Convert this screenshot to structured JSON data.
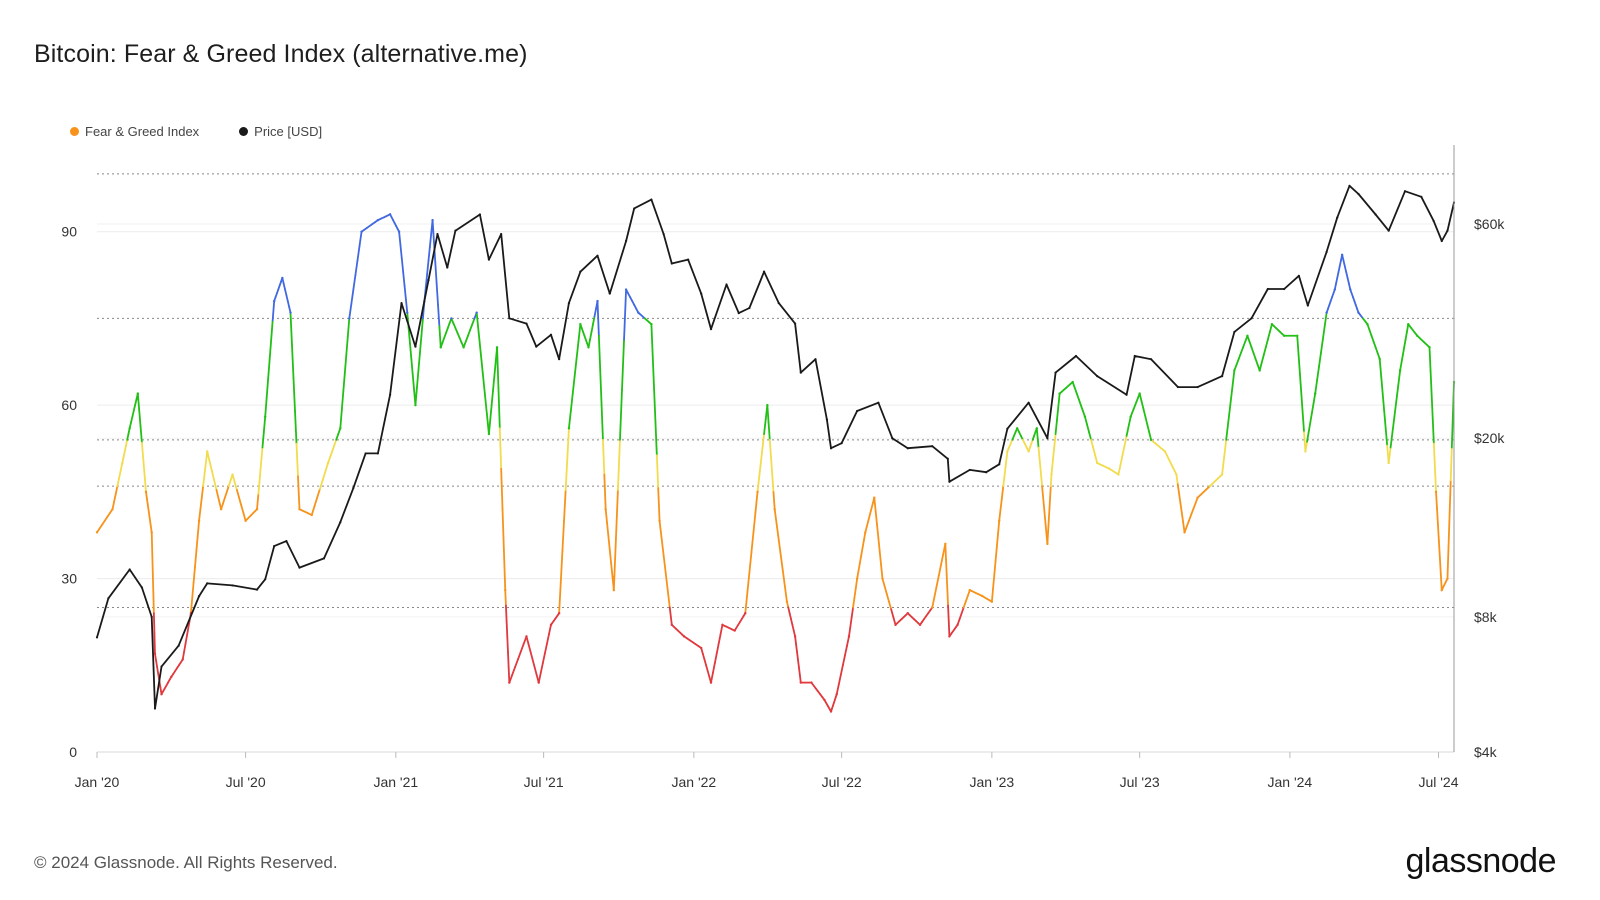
{
  "title": "Bitcoin: Fear & Greed Index (alternative.me)",
  "footer": "© 2024 Glassnode. All Rights Reserved.",
  "brand": "glassnode",
  "legend": [
    {
      "name": "Fear & Greed Index",
      "color": "#f7931a"
    },
    {
      "name": "Price [USD]",
      "color": "#1a1a1a"
    }
  ],
  "colors": {
    "extreme_greed": "#4169e1",
    "greed": "#22c015",
    "neutral": "#f2dc4e",
    "fear": "#f7931a",
    "extreme_fear": "#e0393e",
    "price": "#1a1a1a"
  },
  "chart_data": {
    "type": "line",
    "title": "Bitcoin: Fear & Greed Index (alternative.me)",
    "xlabel": "",
    "ylabel_left": "",
    "ylabel_right": "",
    "x_ticks": [
      "Jan '20",
      "Jul '20",
      "Jan '21",
      "Jul '21",
      "Jan '22",
      "Jul '22",
      "Jan '23",
      "Jul '23",
      "Jan '24",
      "Jul '24"
    ],
    "y_left_ticks": [
      0,
      30,
      60,
      90
    ],
    "y_left_range": [
      0,
      105
    ],
    "y_right_ticks": [
      "$4k",
      "$8k",
      "$20k",
      "$60k"
    ],
    "y_right_tick_values": [
      4000,
      8000,
      20000,
      60000
    ],
    "y_right_scale": "log",
    "y_right_range": [
      4000,
      90000
    ],
    "x_range": [
      "2020-01-01",
      "2024-07-20"
    ],
    "grid": "horizontal",
    "legend_position": "top-left",
    "fg_zone_thresholds": [
      25,
      46,
      54,
      75
    ],
    "series": [
      {
        "name": "Fear & Greed Index",
        "axis": "left",
        "points": [
          [
            "2020-01-01",
            38
          ],
          [
            "2020-01-20",
            42
          ],
          [
            "2020-02-01",
            50
          ],
          [
            "2020-02-10",
            56
          ],
          [
            "2020-02-20",
            62
          ],
          [
            "2020-03-01",
            45
          ],
          [
            "2020-03-08",
            38
          ],
          [
            "2020-03-12",
            17
          ],
          [
            "2020-03-20",
            10
          ],
          [
            "2020-04-01",
            13
          ],
          [
            "2020-04-15",
            16
          ],
          [
            "2020-04-25",
            24
          ],
          [
            "2020-05-05",
            40
          ],
          [
            "2020-05-15",
            52
          ],
          [
            "2020-06-01",
            42
          ],
          [
            "2020-06-15",
            48
          ],
          [
            "2020-07-01",
            40
          ],
          [
            "2020-07-15",
            42
          ],
          [
            "2020-07-25",
            58
          ],
          [
            "2020-08-05",
            78
          ],
          [
            "2020-08-15",
            82
          ],
          [
            "2020-08-25",
            76
          ],
          [
            "2020-09-05",
            42
          ],
          [
            "2020-09-20",
            41
          ],
          [
            "2020-10-10",
            50
          ],
          [
            "2020-10-25",
            56
          ],
          [
            "2020-11-05",
            75
          ],
          [
            "2020-11-20",
            90
          ],
          [
            "2020-12-10",
            92
          ],
          [
            "2020-12-25",
            93
          ],
          [
            "2021-01-05",
            90
          ],
          [
            "2021-01-15",
            76
          ],
          [
            "2021-01-25",
            60
          ],
          [
            "2021-02-05",
            78
          ],
          [
            "2021-02-15",
            92
          ],
          [
            "2021-02-25",
            70
          ],
          [
            "2021-03-10",
            75
          ],
          [
            "2021-03-25",
            70
          ],
          [
            "2021-04-10",
            76
          ],
          [
            "2021-04-25",
            55
          ],
          [
            "2021-05-05",
            70
          ],
          [
            "2021-05-15",
            28
          ],
          [
            "2021-05-20",
            12
          ],
          [
            "2021-06-10",
            20
          ],
          [
            "2021-06-25",
            12
          ],
          [
            "2021-07-10",
            22
          ],
          [
            "2021-07-20",
            24
          ],
          [
            "2021-08-01",
            56
          ],
          [
            "2021-08-15",
            74
          ],
          [
            "2021-08-25",
            70
          ],
          [
            "2021-09-05",
            78
          ],
          [
            "2021-09-15",
            42
          ],
          [
            "2021-09-25",
            28
          ],
          [
            "2021-10-10",
            80
          ],
          [
            "2021-10-25",
            76
          ],
          [
            "2021-11-10",
            74
          ],
          [
            "2021-11-20",
            40
          ],
          [
            "2021-12-05",
            22
          ],
          [
            "2021-12-20",
            20
          ],
          [
            "2022-01-10",
            18
          ],
          [
            "2022-01-22",
            12
          ],
          [
            "2022-02-05",
            22
          ],
          [
            "2022-02-20",
            21
          ],
          [
            "2022-03-05",
            24
          ],
          [
            "2022-03-20",
            45
          ],
          [
            "2022-04-01",
            60
          ],
          [
            "2022-04-10",
            42
          ],
          [
            "2022-04-25",
            26
          ],
          [
            "2022-05-05",
            20
          ],
          [
            "2022-05-12",
            12
          ],
          [
            "2022-05-25",
            12
          ],
          [
            "2022-06-10",
            9
          ],
          [
            "2022-06-18",
            7
          ],
          [
            "2022-06-25",
            10
          ],
          [
            "2022-07-10",
            20
          ],
          [
            "2022-07-20",
            30
          ],
          [
            "2022-07-30",
            38
          ],
          [
            "2022-08-10",
            44
          ],
          [
            "2022-08-20",
            30
          ],
          [
            "2022-09-05",
            22
          ],
          [
            "2022-09-20",
            24
          ],
          [
            "2022-10-05",
            22
          ],
          [
            "2022-10-20",
            25
          ],
          [
            "2022-11-05",
            36
          ],
          [
            "2022-11-10",
            20
          ],
          [
            "2022-11-20",
            22
          ],
          [
            "2022-12-05",
            28
          ],
          [
            "2022-12-20",
            27
          ],
          [
            "2023-01-01",
            26
          ],
          [
            "2023-01-10",
            40
          ],
          [
            "2023-01-20",
            52
          ],
          [
            "2023-02-01",
            56
          ],
          [
            "2023-02-15",
            52
          ],
          [
            "2023-02-25",
            56
          ],
          [
            "2023-03-10",
            36
          ],
          [
            "2023-03-15",
            48
          ],
          [
            "2023-03-25",
            62
          ],
          [
            "2023-04-10",
            64
          ],
          [
            "2023-04-25",
            58
          ],
          [
            "2023-05-10",
            50
          ],
          [
            "2023-05-25",
            49
          ],
          [
            "2023-06-05",
            48
          ],
          [
            "2023-06-20",
            58
          ],
          [
            "2023-07-01",
            62
          ],
          [
            "2023-07-15",
            54
          ],
          [
            "2023-08-01",
            52
          ],
          [
            "2023-08-15",
            48
          ],
          [
            "2023-08-25",
            38
          ],
          [
            "2023-09-10",
            44
          ],
          [
            "2023-09-25",
            46
          ],
          [
            "2023-10-10",
            48
          ],
          [
            "2023-10-25",
            66
          ],
          [
            "2023-11-10",
            72
          ],
          [
            "2023-11-25",
            66
          ],
          [
            "2023-12-10",
            74
          ],
          [
            "2023-12-25",
            72
          ],
          [
            "2024-01-10",
            72
          ],
          [
            "2024-01-20",
            52
          ],
          [
            "2024-02-01",
            62
          ],
          [
            "2024-02-15",
            76
          ],
          [
            "2024-02-25",
            80
          ],
          [
            "2024-03-05",
            86
          ],
          [
            "2024-03-15",
            80
          ],
          [
            "2024-03-25",
            76
          ],
          [
            "2024-04-05",
            74
          ],
          [
            "2024-04-20",
            68
          ],
          [
            "2024-05-01",
            50
          ],
          [
            "2024-05-15",
            66
          ],
          [
            "2024-05-25",
            74
          ],
          [
            "2024-06-05",
            72
          ],
          [
            "2024-06-20",
            70
          ],
          [
            "2024-06-28",
            45
          ],
          [
            "2024-07-05",
            28
          ],
          [
            "2024-07-12",
            30
          ],
          [
            "2024-07-20",
            64
          ]
        ]
      },
      {
        "name": "Price [USD]",
        "axis": "right",
        "points": [
          [
            "2020-01-01",
            7200
          ],
          [
            "2020-01-15",
            8800
          ],
          [
            "2020-02-10",
            10200
          ],
          [
            "2020-02-25",
            9300
          ],
          [
            "2020-03-08",
            8000
          ],
          [
            "2020-03-12",
            5000
          ],
          [
            "2020-03-20",
            6200
          ],
          [
            "2020-04-10",
            6900
          ],
          [
            "2020-05-05",
            8900
          ],
          [
            "2020-05-15",
            9500
          ],
          [
            "2020-06-15",
            9400
          ],
          [
            "2020-07-15",
            9200
          ],
          [
            "2020-07-25",
            9700
          ],
          [
            "2020-08-05",
            11500
          ],
          [
            "2020-08-20",
            11800
          ],
          [
            "2020-09-05",
            10300
          ],
          [
            "2020-10-05",
            10800
          ],
          [
            "2020-10-25",
            13000
          ],
          [
            "2020-11-10",
            15500
          ],
          [
            "2020-11-25",
            18500
          ],
          [
            "2020-12-10",
            18500
          ],
          [
            "2020-12-25",
            25000
          ],
          [
            "2021-01-08",
            40000
          ],
          [
            "2021-01-25",
            32000
          ],
          [
            "2021-02-10",
            45000
          ],
          [
            "2021-02-21",
            57000
          ],
          [
            "2021-03-05",
            48000
          ],
          [
            "2021-03-15",
            58000
          ],
          [
            "2021-04-14",
            63000
          ],
          [
            "2021-04-25",
            50000
          ],
          [
            "2021-05-10",
            57000
          ],
          [
            "2021-05-20",
            37000
          ],
          [
            "2021-06-10",
            36000
          ],
          [
            "2021-06-22",
            32000
          ],
          [
            "2021-07-10",
            34000
          ],
          [
            "2021-07-20",
            30000
          ],
          [
            "2021-08-01",
            40000
          ],
          [
            "2021-08-15",
            47000
          ],
          [
            "2021-09-05",
            51000
          ],
          [
            "2021-09-20",
            42000
          ],
          [
            "2021-10-10",
            55000
          ],
          [
            "2021-10-20",
            65000
          ],
          [
            "2021-11-10",
            68000
          ],
          [
            "2021-11-25",
            57000
          ],
          [
            "2021-12-05",
            49000
          ],
          [
            "2021-12-25",
            50000
          ],
          [
            "2022-01-10",
            42000
          ],
          [
            "2022-01-22",
            35000
          ],
          [
            "2022-02-10",
            44000
          ],
          [
            "2022-02-25",
            38000
          ],
          [
            "2022-03-10",
            39000
          ],
          [
            "2022-03-28",
            47000
          ],
          [
            "2022-04-15",
            40000
          ],
          [
            "2022-05-05",
            36000
          ],
          [
            "2022-05-12",
            28000
          ],
          [
            "2022-05-30",
            30000
          ],
          [
            "2022-06-13",
            22000
          ],
          [
            "2022-06-18",
            19000
          ],
          [
            "2022-07-01",
            19500
          ],
          [
            "2022-07-20",
            23000
          ],
          [
            "2022-08-15",
            24000
          ],
          [
            "2022-09-01",
            20000
          ],
          [
            "2022-09-20",
            19000
          ],
          [
            "2022-10-20",
            19200
          ],
          [
            "2022-11-08",
            18000
          ],
          [
            "2022-11-10",
            16000
          ],
          [
            "2022-12-05",
            17000
          ],
          [
            "2022-12-25",
            16800
          ],
          [
            "2023-01-10",
            17500
          ],
          [
            "2023-01-20",
            21000
          ],
          [
            "2023-02-15",
            24000
          ],
          [
            "2023-03-10",
            20000
          ],
          [
            "2023-03-20",
            28000
          ],
          [
            "2023-04-14",
            30500
          ],
          [
            "2023-05-10",
            27500
          ],
          [
            "2023-06-15",
            25000
          ],
          [
            "2023-06-25",
            30500
          ],
          [
            "2023-07-15",
            30000
          ],
          [
            "2023-08-17",
            26000
          ],
          [
            "2023-09-10",
            26000
          ],
          [
            "2023-10-10",
            27500
          ],
          [
            "2023-10-25",
            34500
          ],
          [
            "2023-11-15",
            37000
          ],
          [
            "2023-12-05",
            43000
          ],
          [
            "2023-12-25",
            43000
          ],
          [
            "2024-01-12",
            46000
          ],
          [
            "2024-01-23",
            39500
          ],
          [
            "2024-02-15",
            52000
          ],
          [
            "2024-02-28",
            62000
          ],
          [
            "2024-03-14",
            73000
          ],
          [
            "2024-03-25",
            70000
          ],
          [
            "2024-04-15",
            63000
          ],
          [
            "2024-05-01",
            58000
          ],
          [
            "2024-05-21",
            71000
          ],
          [
            "2024-06-10",
            69000
          ],
          [
            "2024-06-25",
            61000
          ],
          [
            "2024-07-05",
            55000
          ],
          [
            "2024-07-12",
            58000
          ],
          [
            "2024-07-20",
            67000
          ]
        ]
      }
    ]
  }
}
